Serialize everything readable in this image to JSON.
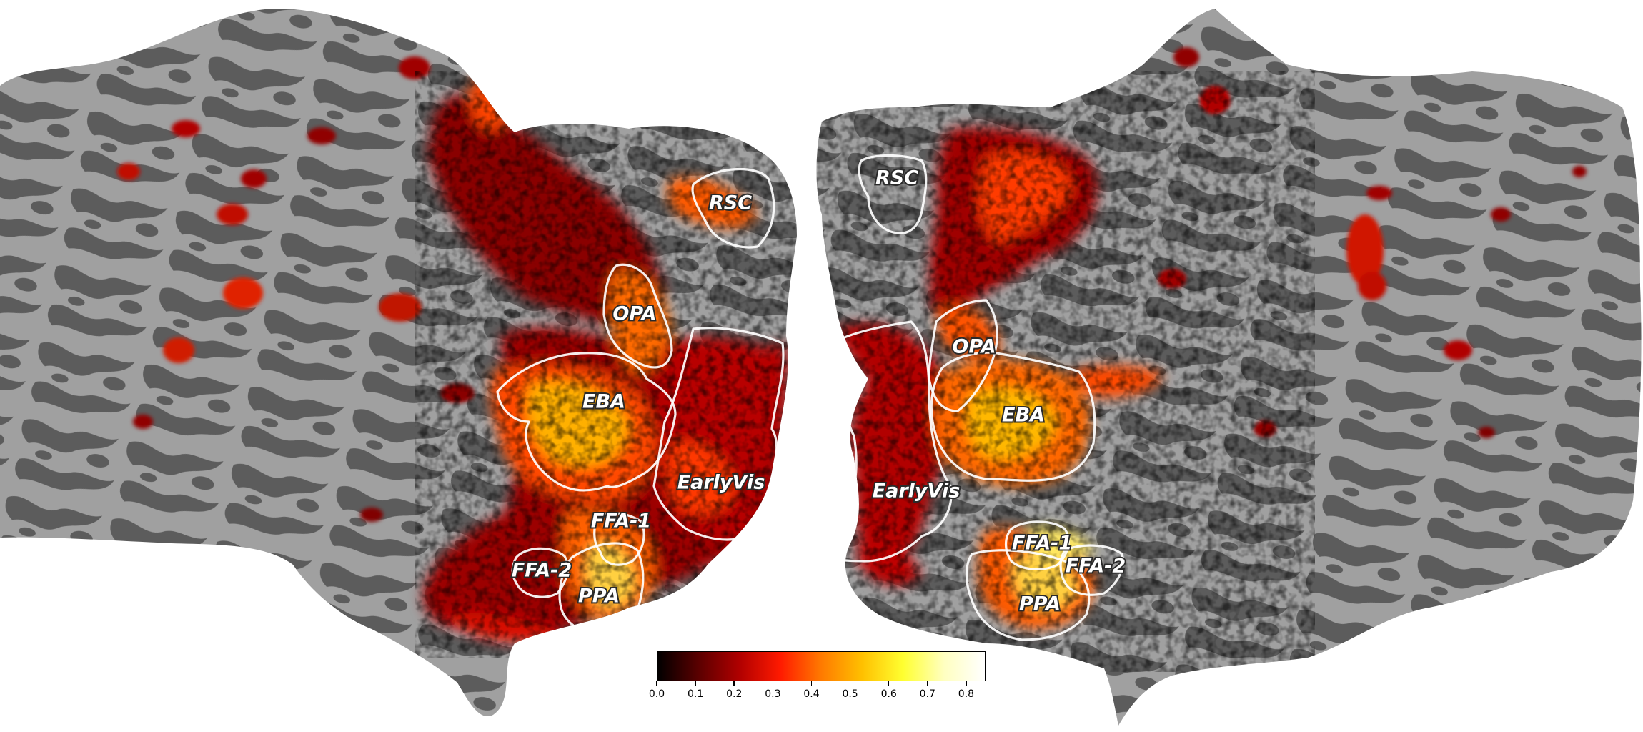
{
  "figure": {
    "hemispheres": [
      "left",
      "right"
    ],
    "colormap": {
      "name": "hot",
      "stops": [
        "#000000",
        "#5a0000",
        "#b00000",
        "#ff1a00",
        "#ff7a00",
        "#ffc000",
        "#ffff30",
        "#ffffc0",
        "#ffffff"
      ],
      "vmin": 0.0,
      "vmax": 0.85,
      "ticks": [
        "0.0",
        "0.1",
        "0.2",
        "0.3",
        "0.4",
        "0.5",
        "0.6",
        "0.7",
        "0.8"
      ]
    },
    "background_colors": {
      "gyri": "#a0a0a0",
      "sulci": "#5c5c5c"
    }
  },
  "rois": {
    "left": {
      "RSC": "RSC",
      "OPA": "OPA",
      "EBA": "EBA",
      "EarlyVis": "EarlyVis",
      "FFA1": "FFA-1",
      "FFA2": "FFA-2",
      "PPA": "PPA"
    },
    "right": {
      "RSC": "RSC",
      "OPA": "OPA",
      "EBA": "EBA",
      "EarlyVis": "EarlyVis",
      "FFA1": "FFA-1",
      "FFA2": "FFA-2",
      "PPA": "PPA"
    }
  }
}
